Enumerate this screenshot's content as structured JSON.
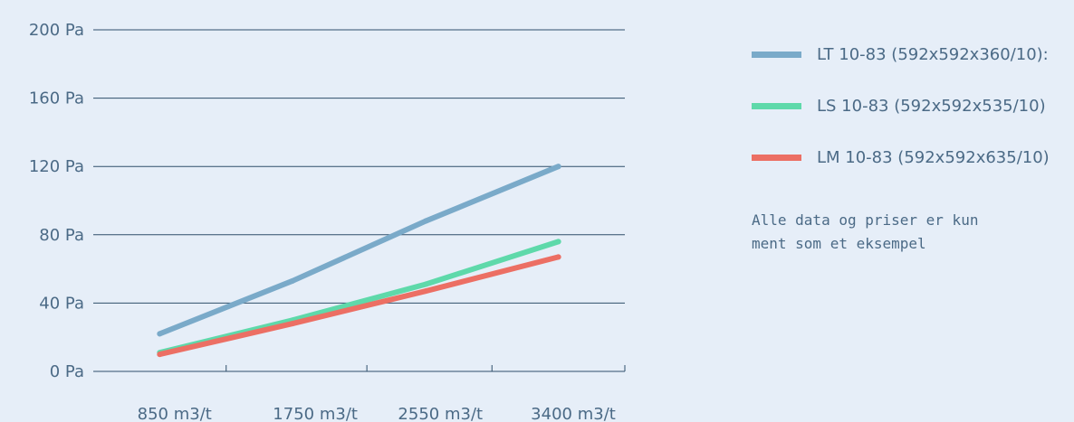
{
  "chart_data": {
    "type": "line",
    "categories": [
      "850 m3/t",
      "1750 m3/t",
      "2550 m3/t",
      "3400 m3/t"
    ],
    "x": [
      850,
      1750,
      2550,
      3400
    ],
    "xlim": [
      0,
      3400
    ],
    "ylim": [
      0,
      200
    ],
    "yticks": [
      "0 Pa",
      "40 Pa",
      "80 Pa",
      "120 Pa",
      "160 Pa",
      "200 Pa"
    ],
    "ytick_values": [
      0,
      40,
      80,
      120,
      160,
      200
    ],
    "grid": true,
    "legend_position": "right",
    "series": [
      {
        "name": "LT 10-83 (592x592x360/10):",
        "color": "#7aaac9",
        "points": [
          [
            425,
            22
          ],
          [
            1275,
            53
          ],
          [
            2125,
            88
          ],
          [
            2975,
            120
          ]
        ]
      },
      {
        "name": "LS 10-83 (592x592x535/10)",
        "color": "#5ed9aa",
        "points": [
          [
            425,
            11
          ],
          [
            1275,
            30
          ],
          [
            2125,
            51
          ],
          [
            2975,
            76
          ]
        ]
      },
      {
        "name": "LM 10-83 (592x592x635/10)",
        "color": "#ec6f64",
        "points": [
          [
            425,
            10
          ],
          [
            1275,
            28
          ],
          [
            2125,
            47
          ],
          [
            2975,
            67
          ]
        ]
      }
    ]
  },
  "note": "Alle data og priser er kun\nment som et eksempel"
}
